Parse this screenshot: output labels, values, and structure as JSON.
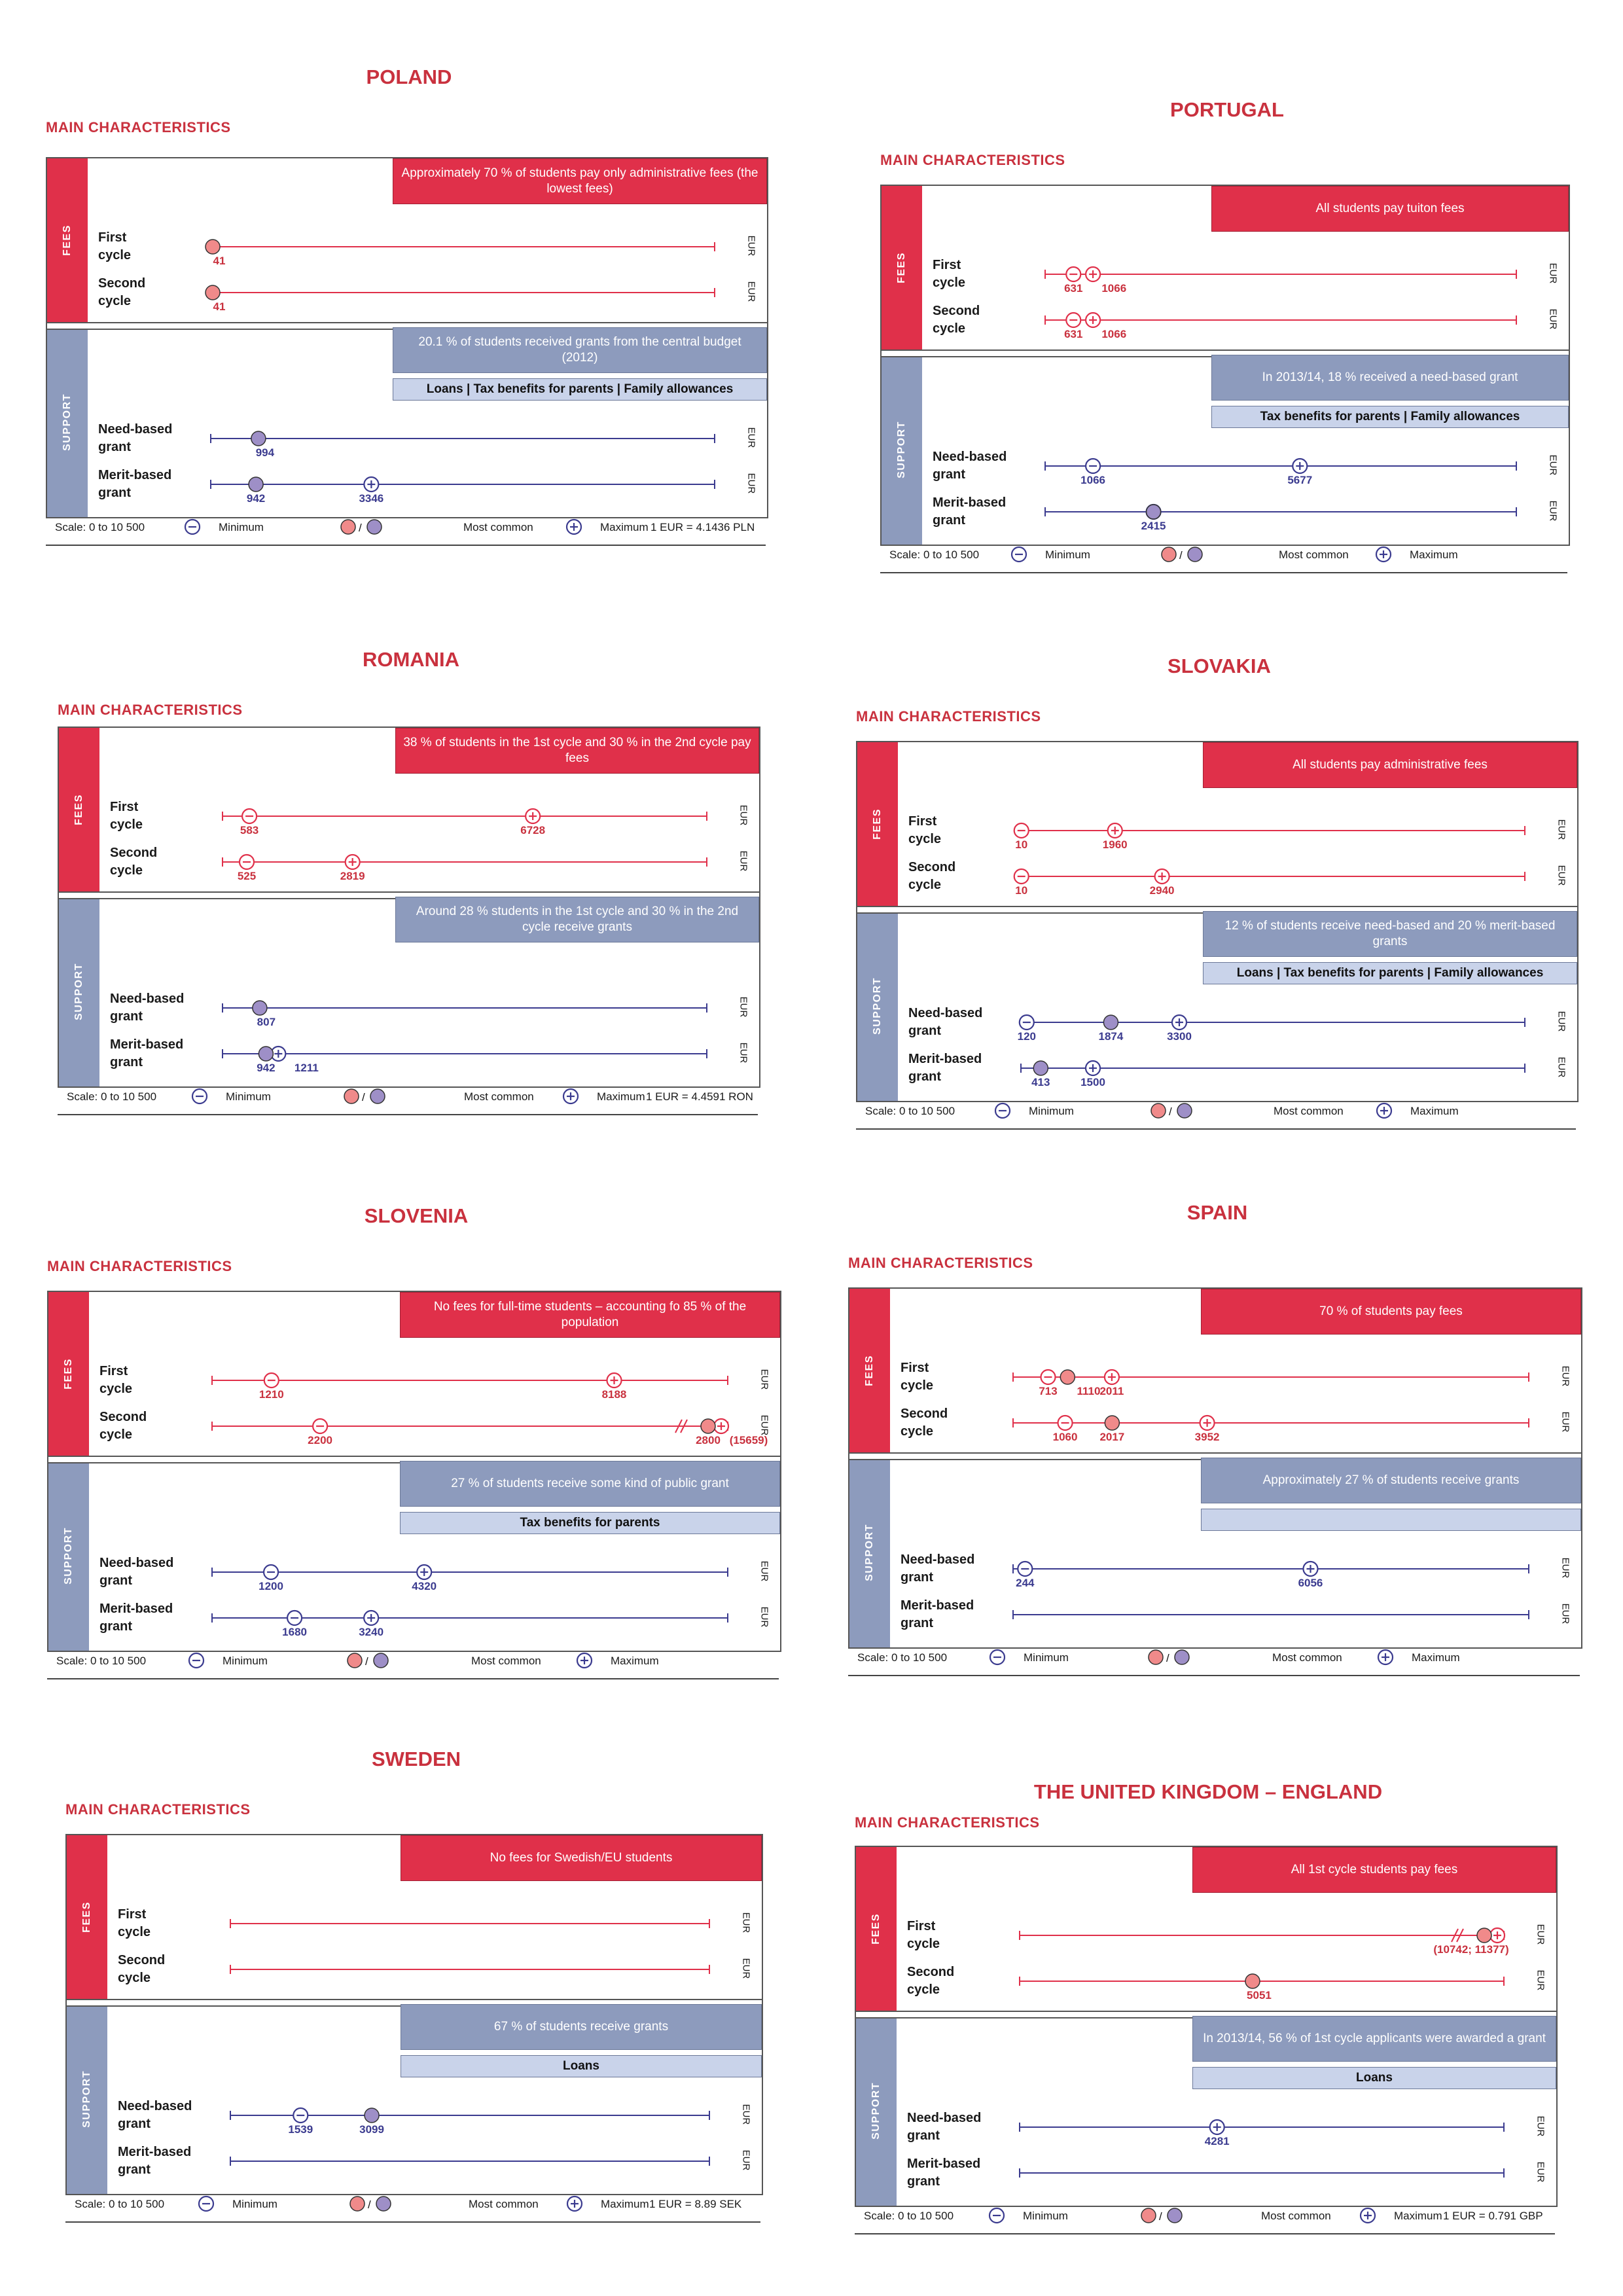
{
  "shared": {
    "main_characteristics": "Main characteristics",
    "fees_label": "FEES",
    "support_label": "SUPPORT",
    "first_cycle": "First\ncycle",
    "second_cycle": "Second\ncycle",
    "need_based": "Need-based\ngrant",
    "merit_based": "Merit-based\ngrant",
    "eur": "EUR",
    "legend": {
      "scale": "Scale: 0 to 10 500",
      "minimum": "Minimum",
      "slash": "/",
      "most_common": "Most common",
      "maximum": "Maximum"
    },
    "colors": {
      "fee_red": "#e0304a",
      "support_blue": "#8d9bbd",
      "line_red": "#e0304a",
      "line_blue": "#3b3b8f",
      "label_red": "#c9313e",
      "label_blue": "#3b3b8f"
    }
  },
  "chart_data": [
    {
      "type": "dot-range",
      "title": "POLAND",
      "scale": [
        0,
        10500
      ],
      "fees_note": "Approximately 70 % of students pay only administrative fees (the lowest fees)",
      "support_note": "20.1 % of students received grants from the central budget (2012)",
      "support_sub": "Loans | Tax benefits for parents | Family allowances",
      "exchange": "1 EUR = 4.1436 PLN",
      "fees": [
        {
          "row": "First cycle",
          "min": null,
          "common": 41,
          "max": null,
          "labels": [
            "41"
          ]
        },
        {
          "row": "Second cycle",
          "min": null,
          "common": 41,
          "max": null,
          "labels": [
            "41"
          ]
        }
      ],
      "support": [
        {
          "row": "Need-based grant",
          "min": null,
          "common": 994,
          "max": null,
          "labels": [
            "994"
          ]
        },
        {
          "row": "Merit-based grant",
          "min": null,
          "common": 942,
          "max": 3346,
          "labels": [
            "942",
            "3346"
          ]
        }
      ]
    },
    {
      "type": "dot-range",
      "title": "PORTUGAL",
      "scale": [
        0,
        10500
      ],
      "fees_note": "All students pay tuiton fees",
      "support_note": "In 2013/14, 18 % received a need-based grant",
      "support_sub": "Tax benefits for parents | Family allowances",
      "exchange": "",
      "fees": [
        {
          "row": "First cycle",
          "min": 631,
          "common": null,
          "max": 1066,
          "labels": [
            "631",
            "1066"
          ]
        },
        {
          "row": "Second cycle",
          "min": 631,
          "common": null,
          "max": 1066,
          "labels": [
            "631",
            "1066"
          ]
        }
      ],
      "support": [
        {
          "row": "Need-based grant",
          "min": 1066,
          "common": null,
          "max": 5677,
          "labels": [
            "1066",
            "5677"
          ]
        },
        {
          "row": "Merit-based grant",
          "min": null,
          "common": 2415,
          "max": 2415,
          "labels": [
            "2415"
          ]
        }
      ]
    },
    {
      "type": "dot-range",
      "title": "ROMANIA",
      "scale": [
        0,
        10500
      ],
      "fees_note": "38 % of students in the 1st cycle and 30 % in the 2nd cycle pay fees",
      "support_note": "Around 28 % students in the 1st cycle and 30 % in the 2nd cycle receive grants",
      "support_sub": "",
      "exchange": "1 EUR = 4.4591 RON",
      "fees": [
        {
          "row": "First cycle",
          "min": 583,
          "common": null,
          "max": 6728,
          "labels": [
            "583",
            "6728"
          ]
        },
        {
          "row": "Second cycle",
          "min": 525,
          "common": null,
          "max": 2819,
          "labels": [
            "525",
            "2819"
          ]
        }
      ],
      "support": [
        {
          "row": "Need-based grant",
          "min": null,
          "common": 807,
          "max": null,
          "labels": [
            "807"
          ]
        },
        {
          "row": "Merit-based grant",
          "min": null,
          "common": 942,
          "max": 1211,
          "labels": [
            "942",
            "1211"
          ]
        }
      ]
    },
    {
      "type": "dot-range",
      "title": "SLOVAKIA",
      "scale": [
        0,
        10500
      ],
      "fees_note": "All students pay administrative fees",
      "support_note": "12 % of students receive need-based and 20 % merit-based grants",
      "support_sub": "Loans | Tax benefits for parents | Family allowances",
      "exchange": "",
      "fees": [
        {
          "row": "First cycle",
          "min": 10,
          "common": null,
          "max": 1960,
          "labels": [
            "10",
            "1960"
          ]
        },
        {
          "row": "Second cycle",
          "min": 10,
          "common": null,
          "max": 2940,
          "labels": [
            "10",
            "2940"
          ]
        }
      ],
      "support": [
        {
          "row": "Need-based grant",
          "min": 120,
          "common": 1874,
          "max": 3300,
          "labels": [
            "120",
            "1874",
            "3300"
          ]
        },
        {
          "row": "Merit-based grant",
          "min": null,
          "common": 413,
          "max": 1500,
          "labels": [
            "413",
            "1500"
          ]
        }
      ]
    },
    {
      "type": "dot-range",
      "title": "SLOVENIA",
      "scale": [
        0,
        10500
      ],
      "fees_note": "No fees for full-time students – accounting fo 85 % of the population",
      "support_note": "27 % of students receive some kind of public grant",
      "support_sub": "Tax benefits for parents",
      "exchange": "",
      "fees": [
        {
          "row": "First cycle",
          "min": 1210,
          "common": null,
          "max": 8188,
          "labels": [
            "1210",
            "8188"
          ]
        },
        {
          "row": "Second cycle",
          "min": 2200,
          "common": 2800,
          "max": 15659,
          "labels": [
            "2200",
            "2800",
            "(15659)"
          ],
          "break": true
        }
      ],
      "support": [
        {
          "row": "Need-based grant",
          "min": 1200,
          "common": null,
          "max": 4320,
          "labels": [
            "1200",
            "4320"
          ]
        },
        {
          "row": "Merit-based grant",
          "min": 1680,
          "common": null,
          "max": 3240,
          "labels": [
            "1680",
            "3240"
          ]
        }
      ]
    },
    {
      "type": "dot-range",
      "title": "SPAIN",
      "scale": [
        0,
        10500
      ],
      "fees_note": "70 % of students pay fees",
      "support_note": "Approximately 27 % of students receive grants",
      "support_sub": " ",
      "exchange": "",
      "fees": [
        {
          "row": "First cycle",
          "min": 713,
          "common": 1110,
          "max": 2011,
          "labels": [
            "713",
            "1110",
            "2011"
          ]
        },
        {
          "row": "Second cycle",
          "min": 1060,
          "common": 2017,
          "max": 3952,
          "labels": [
            "1060",
            "2017",
            "3952"
          ]
        }
      ],
      "support": [
        {
          "row": "Need-based grant",
          "min": 244,
          "common": null,
          "max": 6056,
          "labels": [
            "244",
            "6056"
          ]
        },
        {
          "row": "Merit-based grant",
          "min": null,
          "common": null,
          "max": null,
          "labels": []
        }
      ]
    },
    {
      "type": "dot-range",
      "title": "SWEDEN",
      "scale": [
        0,
        10500
      ],
      "fees_note": "No fees for Swedish/EU students",
      "support_note": "67 % of students receive grants",
      "support_sub": "Loans",
      "exchange": "1 EUR = 8.89 SEK",
      "fees": [
        {
          "row": "First cycle",
          "min": null,
          "common": null,
          "max": null,
          "labels": []
        },
        {
          "row": "Second cycle",
          "min": null,
          "common": null,
          "max": null,
          "labels": []
        }
      ],
      "support": [
        {
          "row": "Need-based grant",
          "min": 1539,
          "common": 3099,
          "max": null,
          "labels": [
            "1539",
            "3099"
          ]
        },
        {
          "row": "Merit-based grant",
          "min": null,
          "common": null,
          "max": null,
          "labels": []
        }
      ]
    },
    {
      "type": "dot-range",
      "title": "THE UNITED KINGDOM – ENGLAND",
      "scale": [
        0,
        10500
      ],
      "fees_note": "All 1st cycle students pay fees",
      "support_note": "In 2013/14, 56 % of 1st cycle applicants were awarded a grant",
      "support_sub": "Loans",
      "exchange": "1 EUR = 0.791 GBP",
      "fees": [
        {
          "row": "First cycle",
          "min": null,
          "common": 10742,
          "max": 11377,
          "labels": [
            "(10742; 11377)"
          ],
          "break": true
        },
        {
          "row": "Second cycle",
          "min": null,
          "common": 5051,
          "max": null,
          "labels": [
            "5051"
          ]
        }
      ],
      "support": [
        {
          "row": "Need-based grant",
          "min": null,
          "common": null,
          "max": 4281,
          "labels": [
            "4281"
          ]
        },
        {
          "row": "Merit-based grant",
          "min": null,
          "common": null,
          "max": null,
          "labels": []
        }
      ]
    }
  ]
}
